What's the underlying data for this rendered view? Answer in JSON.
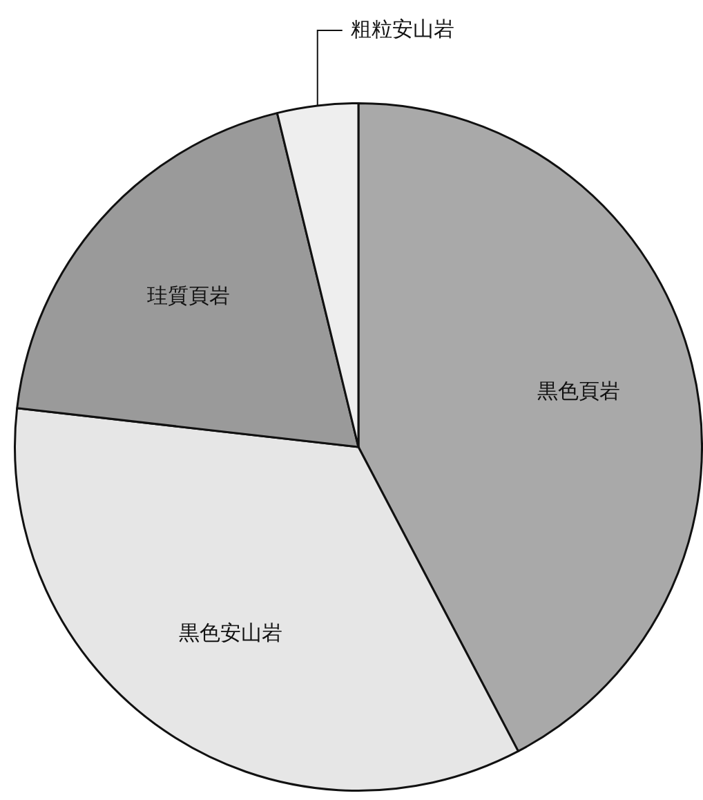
{
  "chart_data": {
    "type": "pie",
    "categories": [
      "黒色頁岩",
      "黒色安山岩",
      "珪質頁岩",
      "粗粒安山岩"
    ],
    "values": [
      42.3,
      34.5,
      19.4,
      3.8
    ],
    "colors": [
      "#a9a9a9",
      "#e6e6e6",
      "#9a9a9a",
      "#eeeeee"
    ],
    "legend": false
  }
}
